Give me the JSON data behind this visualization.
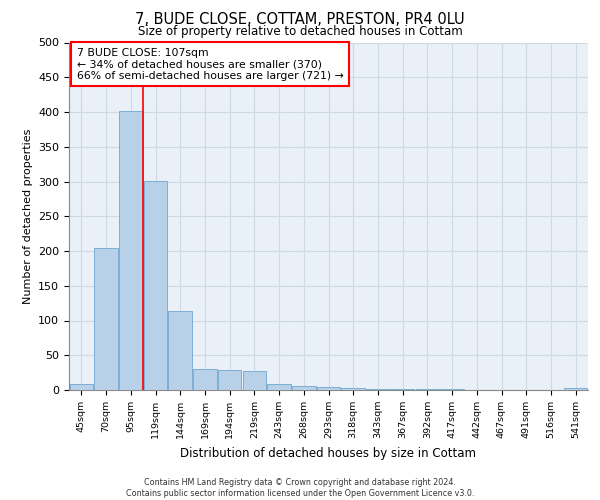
{
  "title_line1": "7, BUDE CLOSE, COTTAM, PRESTON, PR4 0LU",
  "title_line2": "Size of property relative to detached houses in Cottam",
  "xlabel": "Distribution of detached houses by size in Cottam",
  "ylabel": "Number of detached properties",
  "bin_labels": [
    "45sqm",
    "70sqm",
    "95sqm",
    "119sqm",
    "144sqm",
    "169sqm",
    "194sqm",
    "219sqm",
    "243sqm",
    "268sqm",
    "293sqm",
    "318sqm",
    "343sqm",
    "367sqm",
    "392sqm",
    "417sqm",
    "442sqm",
    "467sqm",
    "491sqm",
    "516sqm",
    "541sqm"
  ],
  "bar_values": [
    8,
    204,
    402,
    301,
    113,
    30,
    29,
    27,
    8,
    6,
    5,
    3,
    2,
    2,
    1,
    1,
    0,
    0,
    0,
    0,
    3
  ],
  "bar_color": "#b8d0e8",
  "bar_edge_color": "#7aafd4",
  "property_line_x": 2.5,
  "annotation_text": "7 BUDE CLOSE: 107sqm\n← 34% of detached houses are smaller (370)\n66% of semi-detached houses are larger (721) →",
  "annotation_box_color": "white",
  "annotation_box_edge_color": "red",
  "vline_color": "red",
  "ylim": [
    0,
    500
  ],
  "yticks": [
    0,
    50,
    100,
    150,
    200,
    250,
    300,
    350,
    400,
    450,
    500
  ],
  "grid_color": "#d0d8e0",
  "background_color": "#eaf0f8",
  "footer_line1": "Contains HM Land Registry data © Crown copyright and database right 2024.",
  "footer_line2": "Contains public sector information licensed under the Open Government Licence v3.0."
}
